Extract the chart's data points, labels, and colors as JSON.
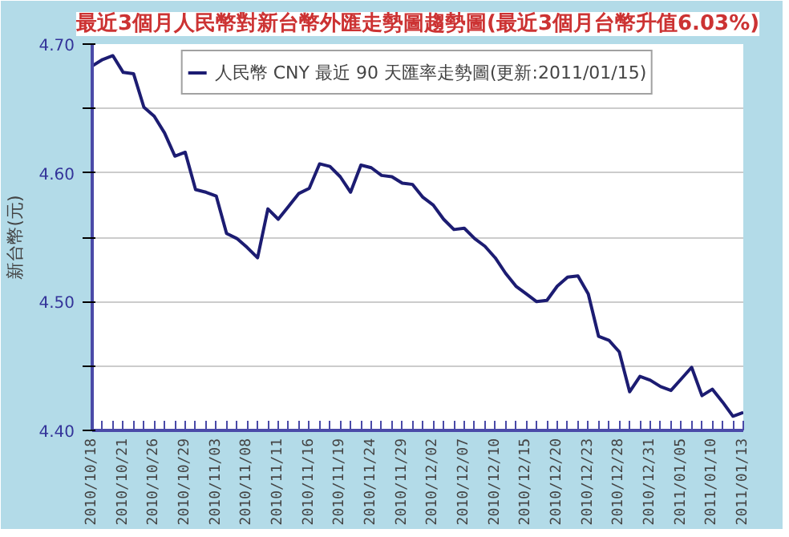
{
  "chart_data": {
    "type": "line",
    "title": "最近3個月人民幣對新台幣外匯走勢圖趨勢圖(最近3個月台幣升值6.03%)",
    "ylabel": "新台幣(元)",
    "categories": [
      "2010/10/18",
      null,
      null,
      "2010/10/21",
      null,
      null,
      "2010/10/26",
      null,
      null,
      "2010/10/29",
      null,
      null,
      "2010/11/03",
      null,
      null,
      "2010/11/08",
      null,
      null,
      "2010/11/11",
      null,
      null,
      "2010/11/16",
      null,
      null,
      "2010/11/19",
      null,
      null,
      "2010/11/24",
      null,
      null,
      "2010/11/29",
      null,
      null,
      "2010/12/02",
      null,
      null,
      "2010/12/07",
      null,
      null,
      "2010/12/10",
      null,
      null,
      "2010/12/15",
      null,
      null,
      "2010/12/20",
      null,
      null,
      "2010/12/23",
      null,
      null,
      "2010/12/28",
      null,
      null,
      "2010/12/31",
      null,
      null,
      "2011/01/05",
      null,
      null,
      "2011/01/10",
      null,
      null,
      "2011/01/13"
    ],
    "series": [
      {
        "name": "人民幣 CNY 最近 90 天匯率走勢圖(更新:2011/01/15)",
        "color": "#1c1c72",
        "values": [
          4.683,
          4.688,
          4.691,
          4.678,
          4.677,
          4.651,
          4.644,
          4.631,
          4.613,
          4.616,
          4.587,
          4.585,
          4.582,
          4.553,
          4.549,
          4.542,
          4.534,
          4.572,
          4.564,
          4.574,
          4.584,
          4.588,
          4.607,
          4.605,
          4.597,
          4.585,
          4.606,
          4.604,
          4.598,
          4.597,
          4.592,
          4.591,
          4.581,
          4.575,
          4.564,
          4.556,
          4.557,
          4.549,
          4.543,
          4.534,
          4.522,
          4.512,
          4.506,
          4.5,
          4.501,
          4.512,
          4.519,
          4.52,
          4.506,
          4.473,
          4.47,
          4.461,
          4.43,
          4.442,
          4.439,
          4.434,
          4.431,
          4.44,
          4.449,
          4.427,
          4.432,
          4.422,
          4.411,
          4.414
        ]
      }
    ],
    "ylim": [
      4.4,
      4.7
    ],
    "yticks": [
      {
        "value": 4.4,
        "label": "4.40"
      },
      {
        "value": 4.45,
        "label": null
      },
      {
        "value": 4.5,
        "label": "4.50"
      },
      {
        "value": 4.55,
        "label": null
      },
      {
        "value": 4.6,
        "label": "4.60"
      },
      {
        "value": 4.65,
        "label": null
      },
      {
        "value": 4.7,
        "label": "4.70"
      }
    ],
    "grid": "y",
    "legend": "top",
    "marker": "none",
    "line_style": "solid"
  }
}
